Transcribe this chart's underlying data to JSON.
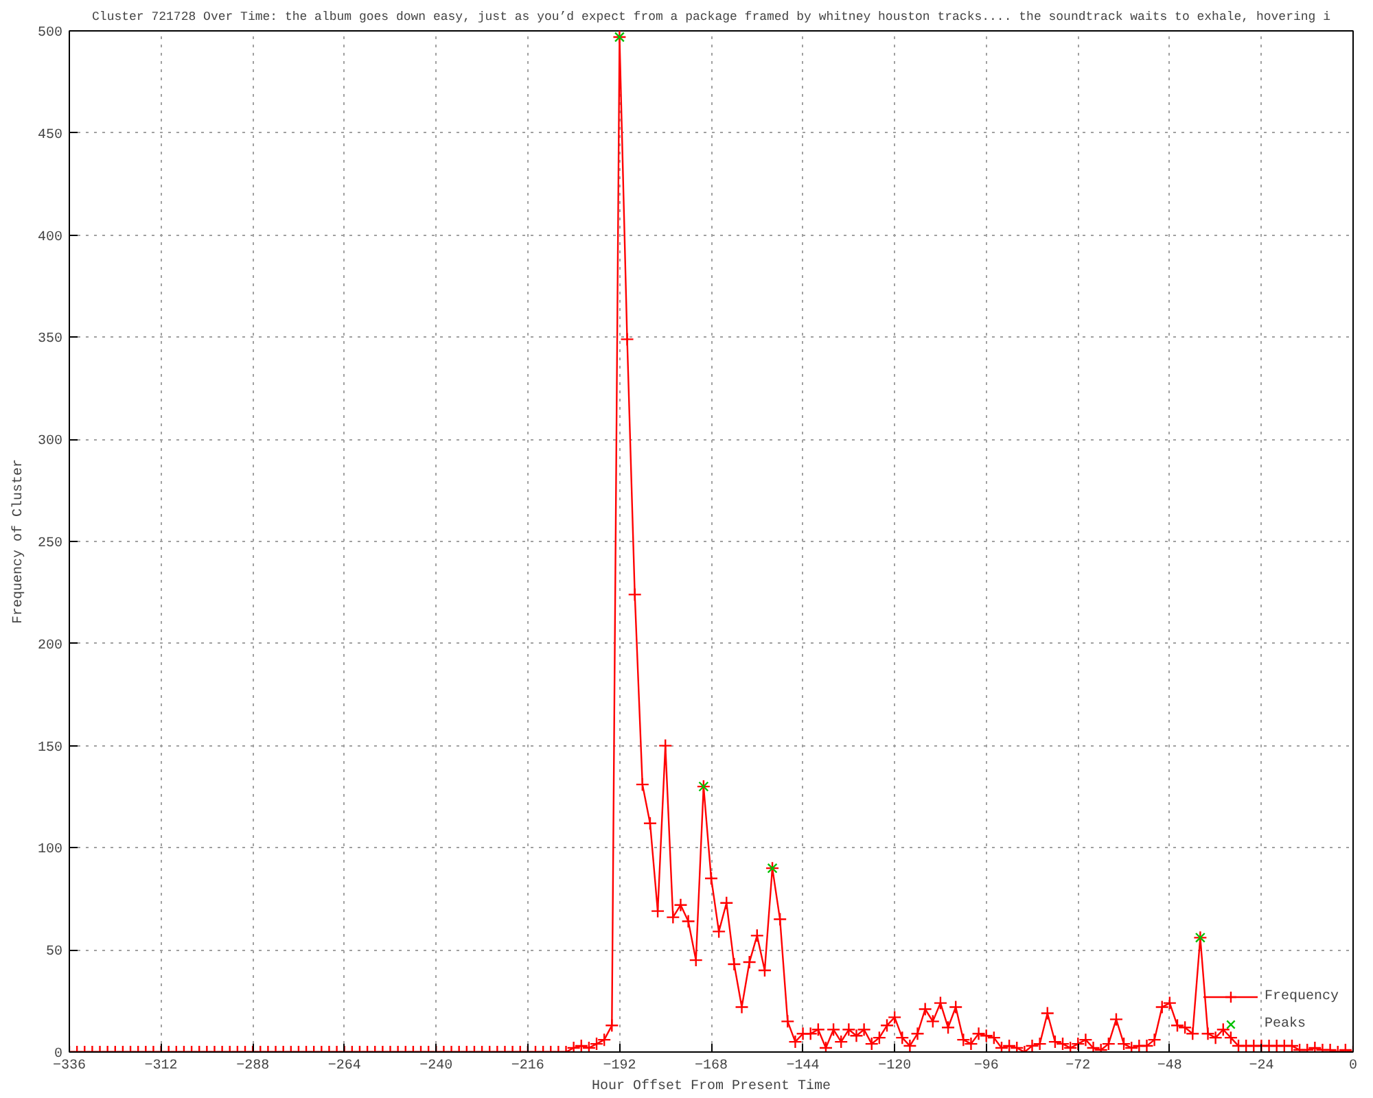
{
  "chart_data": {
    "type": "line",
    "title": "Cluster 721728 Over Time: the album goes down easy, just as you’d expect from a package framed by whitney houston tracks.... the soundtrack waits to exhale, hovering i",
    "xlabel": "Hour Offset From Present Time",
    "ylabel": "Frequency of Cluster",
    "x": [
      -336,
      -334,
      -332,
      -330,
      -328,
      -326,
      -324,
      -322,
      -320,
      -318,
      -316,
      -314,
      -312,
      -310,
      -308,
      -306,
      -304,
      -302,
      -300,
      -298,
      -296,
      -294,
      -292,
      -290,
      -288,
      -286,
      -284,
      -282,
      -280,
      -278,
      -276,
      -274,
      -272,
      -270,
      -268,
      -266,
      -264,
      -262,
      -260,
      -258,
      -256,
      -254,
      -252,
      -250,
      -248,
      -246,
      -244,
      -242,
      -240,
      -238,
      -236,
      -234,
      -232,
      -230,
      -228,
      -226,
      -224,
      -222,
      -220,
      -218,
      -216,
      -214,
      -212,
      -210,
      -208,
      -206,
      -204,
      -202,
      -200,
      -198,
      -196,
      -194,
      -192,
      -190,
      -188,
      -186,
      -184,
      -182,
      -180,
      -178,
      -176,
      -174,
      -172,
      -170,
      -168,
      -166,
      -164,
      -162,
      -160,
      -158,
      -156,
      -154,
      -152,
      -150,
      -148,
      -146,
      -144,
      -142,
      -140,
      -138,
      -136,
      -134,
      -132,
      -130,
      -128,
      -126,
      -124,
      -122,
      -120,
      -118,
      -116,
      -114,
      -112,
      -110,
      -108,
      -106,
      -104,
      -102,
      -100,
      -98,
      -96,
      -94,
      -92,
      -90,
      -88,
      -86,
      -84,
      -82,
      -80,
      -78,
      -76,
      -74,
      -72,
      -70,
      -68,
      -66,
      -64,
      -62,
      -60,
      -58,
      -56,
      -54,
      -52,
      -50,
      -48,
      -46,
      -44,
      -42,
      -40,
      -38,
      -36,
      -34,
      -32,
      -30,
      -28,
      -26,
      -24,
      -22,
      -20,
      -18,
      -16,
      -14,
      -12,
      -10,
      -8,
      -6,
      -4,
      -2,
      0
    ],
    "series": [
      {
        "name": "Frequency",
        "color": "#ff0000",
        "marker": "cross",
        "values": [
          0,
          0,
          0,
          0,
          0,
          0,
          0,
          0,
          0,
          0,
          0,
          0,
          0,
          0,
          0,
          0,
          0,
          0,
          0,
          0,
          0,
          0,
          0,
          0,
          0,
          0,
          0,
          0,
          0,
          0,
          0,
          0,
          0,
          0,
          0,
          0,
          0,
          0,
          0,
          0,
          0,
          0,
          0,
          0,
          0,
          0,
          0,
          0,
          0,
          0,
          0,
          0,
          0,
          0,
          0,
          0,
          0,
          0,
          0,
          0,
          0,
          0,
          0,
          0,
          0,
          0,
          2,
          3,
          2,
          4,
          6,
          13,
          497,
          349,
          224,
          131,
          112,
          69,
          150,
          66,
          72,
          64,
          45,
          130,
          85,
          59,
          73,
          43,
          22,
          44,
          57,
          40,
          90,
          65,
          15,
          5,
          9,
          9,
          11,
          2,
          11,
          5,
          11,
          8,
          11,
          4,
          7,
          13,
          17,
          7,
          3,
          9,
          21,
          15,
          24,
          12,
          22,
          6,
          4,
          9,
          8,
          7,
          2,
          3,
          2,
          0,
          3,
          4,
          19,
          5,
          4,
          2,
          4,
          6,
          2,
          1,
          4,
          16,
          4,
          2,
          3,
          3,
          6,
          22,
          24,
          13,
          12,
          9,
          56,
          9,
          7,
          11,
          7,
          3,
          3,
          3,
          3,
          3,
          3,
          3,
          3,
          1,
          1,
          2,
          1,
          1,
          0,
          1,
          0
        ]
      },
      {
        "name": "Peaks",
        "color": "#00c000",
        "type": "scatter",
        "marker": "x",
        "x": [
          -192,
          -170,
          -152,
          -40
        ],
        "values": [
          497,
          130,
          90,
          56
        ]
      }
    ],
    "xlim": [
      -336,
      0
    ],
    "xticks": [
      -336,
      -312,
      -288,
      -264,
      -240,
      -216,
      -192,
      -168,
      -144,
      -120,
      -96,
      -72,
      -48,
      -24,
      0
    ],
    "ylim": [
      0,
      500
    ],
    "yticks": [
      0,
      50,
      100,
      150,
      200,
      250,
      300,
      350,
      400,
      450,
      500
    ],
    "grid": true,
    "legend": "bottom right"
  }
}
